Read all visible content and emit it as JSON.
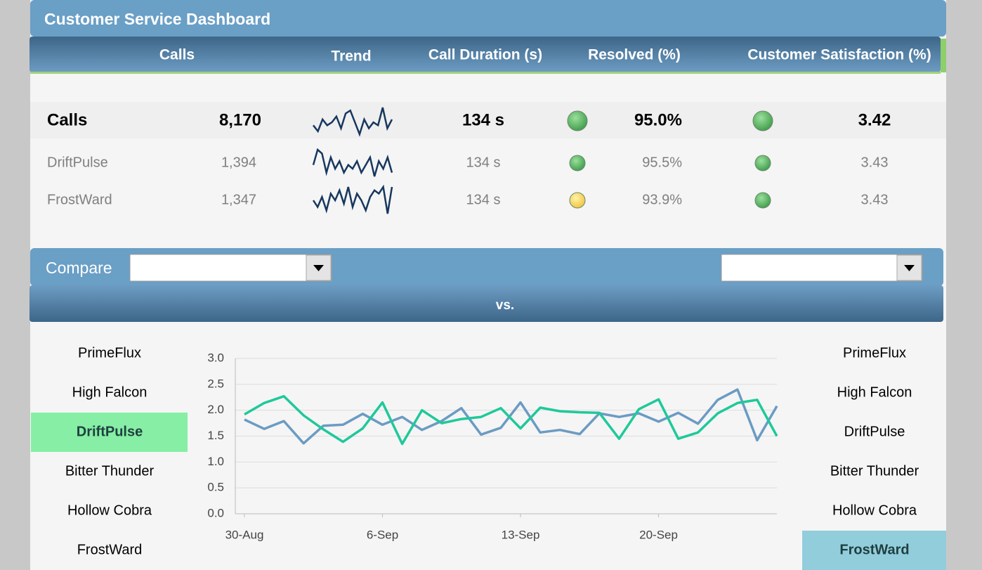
{
  "header": {
    "title": "Customer Service Dashboard"
  },
  "table": {
    "columns": [
      "Calls",
      "Trend",
      "Call Duration (s)",
      "Resolved (%)",
      "Customer Satisfaction (%)"
    ],
    "rows": [
      {
        "name": "Calls",
        "calls": "8,170",
        "trend": [
          4,
          2,
          6,
          4,
          5,
          7,
          3,
          8,
          9,
          5,
          1,
          6,
          3,
          5,
          4,
          10,
          3,
          6
        ],
        "duration": "134 s",
        "resolved_status": "green",
        "resolved": "95.0%",
        "satisfaction_status": "green",
        "satisfaction": "3.42"
      },
      {
        "name": "DriftPulse",
        "calls": "1,394",
        "trend": [
          5,
          9,
          8,
          3,
          7,
          4,
          6,
          3,
          5,
          4,
          6,
          3,
          5,
          7,
          2,
          6,
          4,
          7,
          3
        ],
        "duration": "134 s",
        "resolved_status": "green",
        "resolved": "95.5%",
        "satisfaction_status": "green",
        "satisfaction": "3.43"
      },
      {
        "name": "FrostWard",
        "calls": "1,347",
        "trend": [
          5,
          3,
          6,
          2,
          7,
          5,
          8,
          4,
          9,
          3,
          7,
          5,
          2,
          6,
          8,
          7,
          9,
          1,
          9
        ],
        "duration": "134 s",
        "resolved_status": "yellow",
        "resolved": "93.9%",
        "satisfaction_status": "green",
        "satisfaction": "3.43"
      }
    ]
  },
  "compare": {
    "label": "Compare",
    "vs": "vs."
  },
  "left_list": {
    "items": [
      "PrimeFlux",
      "High Falcon",
      "DriftPulse",
      "Bitter Thunder",
      "Hollow Cobra",
      "FrostWard"
    ],
    "selected": 2,
    "color": "#86efa5"
  },
  "right_list": {
    "items": [
      "PrimeFlux",
      "High Falcon",
      "DriftPulse",
      "Bitter Thunder",
      "Hollow Cobra",
      "FrostWard"
    ],
    "selected": 5,
    "color": "#92cddc"
  },
  "chart_data": {
    "type": "line",
    "categories": [
      "30-Aug",
      null,
      null,
      null,
      null,
      null,
      null,
      "6-Sep",
      null,
      null,
      null,
      null,
      null,
      null,
      "13-Sep",
      null,
      null,
      null,
      null,
      null,
      null,
      "20-Sep",
      null,
      null,
      null,
      null,
      null,
      null
    ],
    "series": [
      {
        "color": "#1fc99a",
        "values": [
          1.92,
          2.14,
          2.27,
          1.9,
          1.63,
          1.39,
          1.65,
          2.15,
          1.35,
          2.0,
          1.75,
          1.83,
          1.87,
          2.04,
          1.65,
          2.05,
          1.98,
          1.96,
          1.95,
          1.45,
          2.02,
          2.21,
          1.45,
          1.57,
          1.94,
          2.14,
          2.2,
          1.5
        ]
      },
      {
        "color": "#6b9bc3",
        "values": [
          1.82,
          1.64,
          1.79,
          1.36,
          1.7,
          1.72,
          1.93,
          1.72,
          1.87,
          1.62,
          1.79,
          2.04,
          1.53,
          1.66,
          2.15,
          1.57,
          1.62,
          1.54,
          1.94,
          1.87,
          1.94,
          1.78,
          1.95,
          1.74,
          2.2,
          2.4,
          1.42,
          2.08
        ]
      }
    ],
    "ylim": [
      0,
      3
    ],
    "yticks": [
      {
        "value": 0,
        "label": "0.0"
      },
      {
        "value": 0.5,
        "label": "0.5"
      },
      {
        "value": 1,
        "label": "1.0"
      },
      {
        "value": 1.5,
        "label": "1.5"
      },
      {
        "value": 2,
        "label": "2.0"
      },
      {
        "value": 2.5,
        "label": "2.5"
      },
      {
        "value": 3,
        "label": "3.0"
      }
    ],
    "grid": true
  }
}
